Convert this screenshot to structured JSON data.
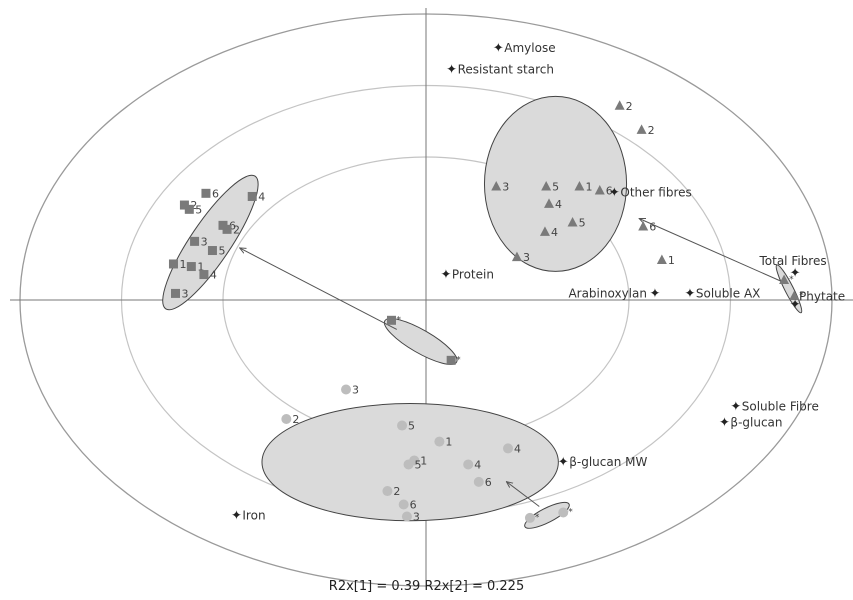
{
  "chart_data": {
    "type": "scatter",
    "subtype": "PCA biplot (scores and loadings)",
    "title": "",
    "xlabel": "",
    "ylabel": "",
    "xlim": [
      -1.0,
      1.0
    ],
    "ylim": [
      -1.0,
      1.0
    ],
    "footer": "R2x[1] = 0.39   R2x[2] = 0.225",
    "confidence_ellipses": [
      {
        "radius": 1.0
      },
      {
        "radius": 0.75
      },
      {
        "radius": 0.5
      }
    ],
    "loadings": [
      {
        "label": "Amylose",
        "x": 0.178,
        "y": 0.881
      },
      {
        "label": "Resistant starch",
        "x": 0.063,
        "y": 0.806
      },
      {
        "label": "Other fibres",
        "x": 0.464,
        "y": 0.376
      },
      {
        "label": "Protein",
        "x": 0.049,
        "y": 0.09
      },
      {
        "label": "Total Fibres",
        "x": 0.909,
        "y": 0.094
      },
      {
        "label": "Phytate",
        "x": 0.909,
        "y": -0.015
      },
      {
        "label": "Arabinoxylan",
        "x": 0.564,
        "y": 0.022
      },
      {
        "label": "Soluble AX",
        "x": 0.65,
        "y": 0.022
      },
      {
        "label": "Soluble Fibre",
        "x": 0.763,
        "y": -0.373
      },
      {
        "label": "β-glucan",
        "x": 0.735,
        "y": -0.429
      },
      {
        "label": "β-glucan MW",
        "x": 0.338,
        "y": -0.567
      },
      {
        "label": "Iron",
        "x": -0.467,
        "y": -0.754
      }
    ],
    "series": [
      {
        "marker": "square",
        "points": [
          {
            "label": "6",
            "x": -0.542,
            "y": 0.373
          },
          {
            "label": "4",
            "x": -0.428,
            "y": 0.362
          },
          {
            "label": "2",
            "x": -0.595,
            "y": 0.332
          },
          {
            "label": "5",
            "x": -0.583,
            "y": 0.317
          },
          {
            "label": "6",
            "x": -0.5,
            "y": 0.261
          },
          {
            "label": "2",
            "x": -0.49,
            "y": 0.247
          },
          {
            "label": "3",
            "x": -0.57,
            "y": 0.205
          },
          {
            "label": "5",
            "x": -0.526,
            "y": 0.173
          },
          {
            "label": "1",
            "x": -0.622,
            "y": 0.126
          },
          {
            "label": "1",
            "x": -0.578,
            "y": 0.117
          },
          {
            "label": "4",
            "x": -0.547,
            "y": 0.089
          },
          {
            "label": "3",
            "x": -0.617,
            "y": 0.023
          }
        ]
      },
      {
        "marker": "triangle",
        "points": [
          {
            "label": "2",
            "x": 0.477,
            "y": 0.679
          },
          {
            "label": "2",
            "x": 0.531,
            "y": 0.595
          },
          {
            "label": "3",
            "x": 0.173,
            "y": 0.397
          },
          {
            "label": "5",
            "x": 0.296,
            "y": 0.397
          },
          {
            "label": "1",
            "x": 0.378,
            "y": 0.397
          },
          {
            "label": "6",
            "x": 0.428,
            "y": 0.383
          },
          {
            "label": "4",
            "x": 0.303,
            "y": 0.336
          },
          {
            "label": "5",
            "x": 0.361,
            "y": 0.271
          },
          {
            "label": "4",
            "x": 0.293,
            "y": 0.238
          },
          {
            "label": "6",
            "x": 0.535,
            "y": 0.257
          },
          {
            "label": "3",
            "x": 0.224,
            "y": 0.15
          },
          {
            "label": "1",
            "x": 0.581,
            "y": 0.14
          }
        ]
      },
      {
        "marker": "circle",
        "points": [
          {
            "label": "3",
            "x": -0.197,
            "y": -0.313
          },
          {
            "label": "2",
            "x": -0.344,
            "y": -0.416
          },
          {
            "label": "5",
            "x": -0.059,
            "y": -0.439
          },
          {
            "label": "1",
            "x": 0.033,
            "y": -0.495
          },
          {
            "label": "1",
            "x": -0.029,
            "y": -0.561
          },
          {
            "label": "5",
            "x": -0.043,
            "y": -0.575
          },
          {
            "label": "4",
            "x": 0.202,
            "y": -0.519
          },
          {
            "label": "4",
            "x": 0.104,
            "y": -0.575
          },
          {
            "label": "6",
            "x": 0.13,
            "y": -0.636
          },
          {
            "label": "2",
            "x": -0.095,
            "y": -0.668
          },
          {
            "label": "6",
            "x": -0.055,
            "y": -0.715
          },
          {
            "label": "3",
            "x": -0.047,
            "y": -0.757
          }
        ]
      }
    ],
    "asterisk_points": [
      {
        "marker": "square",
        "x": -0.085,
        "y": -0.071
      },
      {
        "marker": "square",
        "x": 0.062,
        "y": -0.211
      },
      {
        "marker": "triangle",
        "x": 0.882,
        "y": 0.07
      },
      {
        "marker": "triangle",
        "x": 0.907,
        "y": 0.014
      },
      {
        "marker": "circle",
        "x": 0.338,
        "y": -0.743
      },
      {
        "marker": "circle",
        "x": 0.256,
        "y": -0.762
      }
    ],
    "group_ellipses": [
      {
        "cx": -0.531,
        "cy": 0.201,
        "rx": 0.197,
        "ry": 0.07,
        "rotation": -56,
        "fill": "#dadada"
      },
      {
        "cx": 0.319,
        "cy": 0.406,
        "rx": 0.175,
        "ry": 0.306,
        "rotation": 0,
        "fill": "#dadada"
      },
      {
        "cx": -0.039,
        "cy": -0.567,
        "rx": 0.365,
        "ry": 0.205,
        "rotation": 0,
        "fill": "#dadada"
      },
      {
        "cx": -0.013,
        "cy": -0.145,
        "rx": 0.102,
        "ry": 0.04,
        "rotation": 30,
        "fill": "#dadada"
      },
      {
        "cx": 0.894,
        "cy": 0.039,
        "rx": 0.066,
        "ry": 0.015,
        "rotation": 63,
        "fill": "#dadada"
      },
      {
        "cx": 0.298,
        "cy": -0.753,
        "rx": 0.061,
        "ry": 0.025,
        "rotation": -27,
        "fill": "#dadada"
      }
    ],
    "arrows": [
      {
        "from": [
          -0.072,
          -0.103
        ],
        "to": [
          -0.459,
          0.182
        ]
      },
      {
        "from": [
          0.874,
          0.066
        ],
        "to": [
          0.525,
          0.285
        ]
      },
      {
        "from": [
          0.279,
          -0.722
        ],
        "to": [
          0.198,
          -0.635
        ]
      }
    ],
    "colors": {
      "marker": "#7a7a7a",
      "circle_marker": "#bdbdbd",
      "axis": "#777777",
      "outer_ellipse": "#9a9a9a",
      "inner_ellipse": "#c4c4c4"
    }
  }
}
